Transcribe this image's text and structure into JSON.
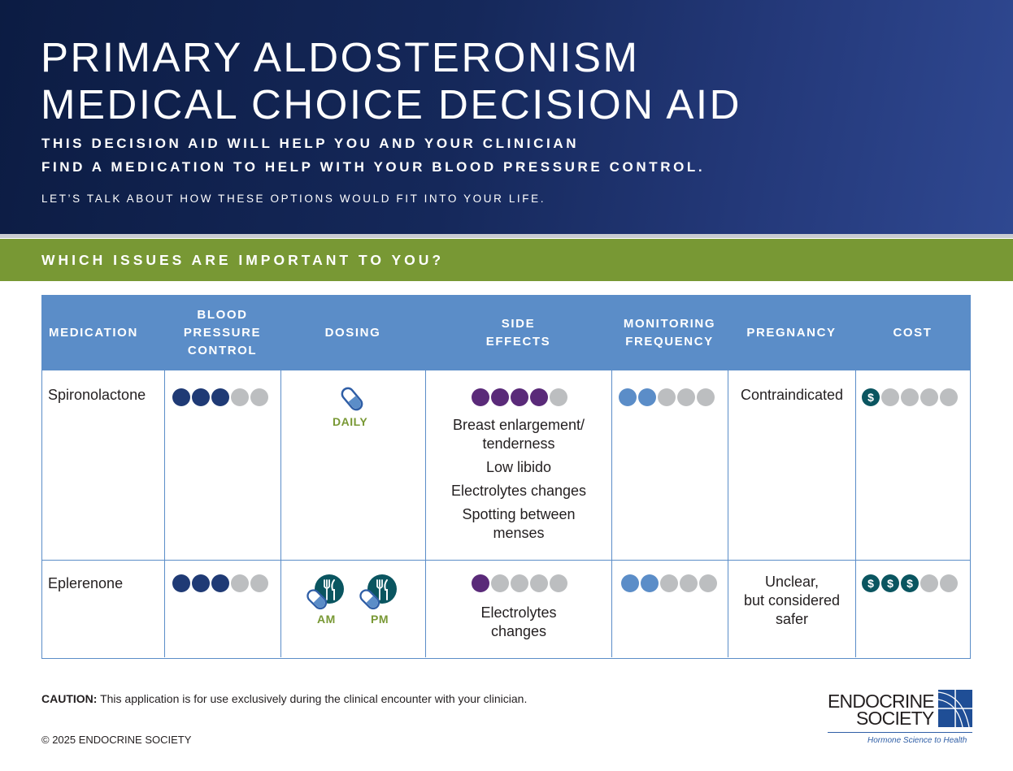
{
  "header": {
    "title_line1": "PRIMARY ALDOSTERONISM",
    "title_line2": "MEDICAL CHOICE DECISION AID",
    "subtitle_line1": "THIS DECISION AID WILL HELP YOU AND YOUR CLINICIAN",
    "subtitle_line2": "FIND A MEDICATION TO HELP WITH YOUR BLOOD PRESSURE CONTROL.",
    "subtitle_line3": "LET’S TALK ABOUT HOW THESE OPTIONS WOULD FIT INTO YOUR LIFE."
  },
  "band": {
    "text": "WHICH ISSUES ARE IMPORTANT TO YOU?"
  },
  "table": {
    "headers": [
      "MEDICATION",
      "BLOOD PRESSURE CONTROL",
      "DOSING",
      "SIDE EFFECTS",
      "MONITORING FREQUENCY",
      "PREGNANCY",
      "COST"
    ],
    "header_lines": {
      "medication": "MEDICATION",
      "bp_1": "BLOOD",
      "bp_2": "PRESSURE",
      "bp_3": "CONTROL",
      "dosing": "DOSING",
      "se_1": "SIDE",
      "se_2": "EFFECTS",
      "mon_1": "MONITORING",
      "mon_2": "FREQUENCY",
      "pregnancy": "PREGNANCY",
      "cost": "COST"
    },
    "rows": [
      {
        "medication": "Spironolactone",
        "bp_control": 3,
        "dosing": {
          "label": "DAILY",
          "icon": "pill-icon"
        },
        "side_effects_level": 4,
        "side_effects": [
          "Breast enlargement/",
          "tenderness",
          "Low libido",
          "Electrolytes changes",
          "Spotting between",
          "menses"
        ],
        "monitoring": 2,
        "pregnancy": [
          "Contraindicated"
        ],
        "cost": 1
      },
      {
        "medication": "Eplerenone",
        "bp_control": 3,
        "dosing": {
          "am": "AM",
          "pm": "PM",
          "icon": "pill-with-meal-icon"
        },
        "side_effects_level": 1,
        "side_effects": [
          "Electrolytes",
          "changes"
        ],
        "monitoring": 2,
        "pregnancy": [
          "Unclear,",
          "but considered",
          "safer"
        ],
        "cost": 3
      }
    ],
    "scale_max": 5,
    "cost_symbol": "$",
    "colors": {
      "bp": "#1f3a75",
      "side_effects": "#5a2a79",
      "monitoring": "#5b8dc8",
      "cost": "#0a5560",
      "empty": "#bcbec0"
    }
  },
  "footer": {
    "caution_label": "CAUTION:",
    "caution_text": " This application is for use exclusively during the clinical encounter with your clinician.",
    "copyright": "© 2025 ENDOCRINE SOCIETY"
  },
  "logo": {
    "line1": "ENDOCRINE",
    "line2": "SOCIETY",
    "tagline": "Hormone Science to Health"
  }
}
